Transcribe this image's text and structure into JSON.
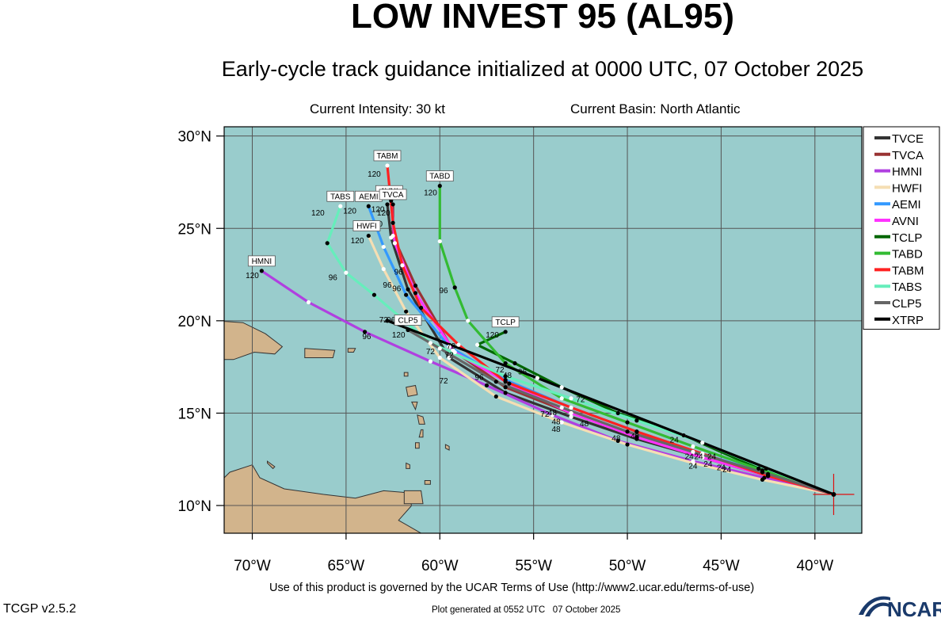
{
  "header": {
    "title": "LOW INVEST 95 (AL95)",
    "subtitle": "Early-cycle track guidance initialized at 0000 UTC, 07 October 2025",
    "intensity": "Current Intensity: 30 kt",
    "basin": "Current Basin: North Atlantic"
  },
  "footer": {
    "terms": "Use of this product is governed by the UCAR Terms of Use (http://www2.ucar.edu/terms-of-use)",
    "version": "TCGP v2.5.2",
    "generated": "Plot generated at 0552 UTC   07 October 2025",
    "logo_text": "NCAR"
  },
  "colors": {
    "ocean": "#99cccc",
    "land": "#d2b48c",
    "grid": "#555555"
  },
  "chart_data": {
    "type": "line",
    "xlim": [
      -71.5,
      -37.5
    ],
    "ylim": [
      8.5,
      30.5
    ],
    "x_ticks": [
      -70,
      -65,
      -60,
      -55,
      -50,
      -45,
      -40
    ],
    "x_tick_labels": [
      "70°W",
      "65°W",
      "60°W",
      "55°W",
      "50°W",
      "45°W",
      "40°W"
    ],
    "y_ticks": [
      10,
      15,
      20,
      25,
      30
    ],
    "y_tick_labels": [
      "10°N",
      "15°N",
      "20°N",
      "25°N",
      "30°N"
    ],
    "grid": true,
    "legend_position": "right",
    "initial_position": {
      "lon": -39.0,
      "lat": 10.6
    },
    "series": [
      {
        "name": "TVCE",
        "color": "#333333",
        "points": [
          [
            -39.0,
            10.6
          ],
          [
            -42.5,
            11.6
          ],
          [
            -46.0,
            12.6
          ],
          [
            -49.5,
            13.6
          ],
          [
            -53.0,
            14.8
          ],
          [
            -56.5,
            16.1
          ],
          [
            -59.5,
            18.0
          ],
          [
            -61.7,
            21.7
          ],
          [
            -62.6,
            24.5
          ],
          [
            -62.8,
            26.3
          ]
        ]
      },
      {
        "name": "TVCA",
        "color": "#993333",
        "points": [
          [
            -39.0,
            10.6
          ],
          [
            -42.5,
            11.6
          ],
          [
            -46.0,
            12.6
          ],
          [
            -49.5,
            13.7
          ],
          [
            -53.0,
            15.0
          ],
          [
            -56.5,
            16.4
          ],
          [
            -59.3,
            18.4
          ],
          [
            -61.3,
            21.9
          ],
          [
            -62.5,
            24.6
          ],
          [
            -62.5,
            26.3
          ]
        ]
      },
      {
        "name": "HMNI",
        "color": "#b040e0",
        "points": [
          [
            -39.0,
            10.6
          ],
          [
            -42.7,
            11.5
          ],
          [
            -46.5,
            12.4
          ],
          [
            -50.5,
            13.5
          ],
          [
            -54.0,
            14.9
          ],
          [
            -57.5,
            16.5
          ],
          [
            -60.5,
            17.8
          ],
          [
            -64.0,
            19.4
          ],
          [
            -67.0,
            21.0
          ],
          [
            -69.5,
            22.7
          ]
        ]
      },
      {
        "name": "HWFI",
        "color": "#f5deb3",
        "points": [
          [
            -39.0,
            10.6
          ],
          [
            -42.8,
            11.4
          ],
          [
            -46.5,
            12.3
          ],
          [
            -50.0,
            13.3
          ],
          [
            -53.5,
            14.5
          ],
          [
            -57.0,
            15.9
          ],
          [
            -60.0,
            18.0
          ],
          [
            -61.8,
            20.5
          ],
          [
            -63.0,
            22.8
          ],
          [
            -63.8,
            24.6
          ]
        ]
      },
      {
        "name": "AEMI",
        "color": "#3399ff",
        "points": [
          [
            -39.0,
            10.6
          ],
          [
            -42.5,
            11.7
          ],
          [
            -46.0,
            12.8
          ],
          [
            -49.5,
            14.0
          ],
          [
            -53.0,
            15.3
          ],
          [
            -56.5,
            16.8
          ],
          [
            -59.5,
            18.6
          ],
          [
            -61.8,
            21.4
          ],
          [
            -63.0,
            24.0
          ],
          [
            -63.8,
            26.2
          ]
        ]
      },
      {
        "name": "AVNI",
        "color": "#ff33ff",
        "points": [
          [
            -39.0,
            10.6
          ],
          [
            -42.5,
            11.6
          ],
          [
            -46.0,
            12.6
          ],
          [
            -49.5,
            13.7
          ],
          [
            -53.0,
            15.0
          ],
          [
            -56.3,
            16.6
          ],
          [
            -59.2,
            18.3
          ],
          [
            -61.3,
            21.5
          ],
          [
            -62.4,
            24.2
          ],
          [
            -62.6,
            26.5
          ]
        ]
      },
      {
        "name": "TCLP",
        "color": "#006600",
        "points": [
          [
            -39.0,
            10.6
          ],
          [
            -43.0,
            12.0
          ],
          [
            -47.0,
            13.8
          ],
          [
            -50.5,
            15.0
          ],
          [
            -53.5,
            16.4
          ],
          [
            -56.0,
            17.7
          ],
          [
            -58.0,
            18.7
          ],
          [
            -56.5,
            19.4
          ]
        ]
      },
      {
        "name": "TABD",
        "color": "#33bb33",
        "points": [
          [
            -39.0,
            10.6
          ],
          [
            -42.8,
            11.9
          ],
          [
            -46.5,
            13.2
          ],
          [
            -50.0,
            14.5
          ],
          [
            -53.5,
            15.8
          ],
          [
            -56.5,
            17.7
          ],
          [
            -58.5,
            20.0
          ],
          [
            -59.2,
            21.8
          ],
          [
            -60.0,
            24.3
          ],
          [
            -60.0,
            27.3
          ]
        ]
      },
      {
        "name": "TABM",
        "color": "#ff2222",
        "points": [
          [
            -39.0,
            10.6
          ],
          [
            -42.5,
            11.6
          ],
          [
            -46.0,
            12.8
          ],
          [
            -49.5,
            14.0
          ],
          [
            -53.0,
            15.3
          ],
          [
            -56.5,
            16.7
          ],
          [
            -59.0,
            18.7
          ],
          [
            -61.0,
            20.7
          ],
          [
            -62.0,
            23.0
          ],
          [
            -62.5,
            25.3
          ],
          [
            -62.8,
            28.4
          ]
        ]
      },
      {
        "name": "TABS",
        "color": "#66eebb",
        "points": [
          [
            -39.0,
            10.6
          ],
          [
            -42.6,
            12.0
          ],
          [
            -46.0,
            13.4
          ],
          [
            -49.5,
            14.6
          ],
          [
            -53.0,
            15.8
          ],
          [
            -56.5,
            17.0
          ],
          [
            -60.5,
            18.8
          ],
          [
            -63.5,
            21.4
          ],
          [
            -65.0,
            22.6
          ],
          [
            -66.0,
            24.2
          ],
          [
            -65.3,
            26.2
          ]
        ]
      },
      {
        "name": "CLP5",
        "color": "#666666",
        "points": [
          [
            -39.0,
            10.6
          ],
          [
            -42.8,
            11.8
          ],
          [
            -46.5,
            12.9
          ],
          [
            -50.0,
            14.0
          ],
          [
            -53.5,
            15.3
          ],
          [
            -57.0,
            16.7
          ],
          [
            -60.0,
            18.5
          ],
          [
            -61.7,
            19.5
          ]
        ]
      },
      {
        "name": "XTRP",
        "color": "#000000",
        "points": [
          [
            -39.0,
            10.6
          ],
          [
            -47.0,
            13.8
          ],
          [
            -54.8,
            16.9
          ],
          [
            -62.8,
            20.0
          ]
        ]
      }
    ],
    "end_labels": [
      {
        "text": "TABM",
        "lon": -62.8,
        "lat": 28.4
      },
      {
        "text": "TABD",
        "lon": -60.0,
        "lat": 27.3
      },
      {
        "text": "AVNI",
        "lon": -62.7,
        "lat": 26.5
      },
      {
        "text": "AEMI",
        "lon": -63.8,
        "lat": 26.2
      },
      {
        "text": "TVCA",
        "lon": -62.5,
        "lat": 26.3
      },
      {
        "text": "TABS",
        "lon": -65.3,
        "lat": 26.2
      },
      {
        "text": "HWFI",
        "lon": -63.9,
        "lat": 24.6
      },
      {
        "text": "HMNI",
        "lon": -69.5,
        "lat": 22.7
      },
      {
        "text": "TCLP",
        "lon": -56.5,
        "lat": 19.4
      },
      {
        "text": "CLP5",
        "lon": -61.7,
        "lat": 19.5
      }
    ],
    "hour_labels": [
      {
        "text": "120",
        "lon": -63.5,
        "lat": 27.8
      },
      {
        "text": "120",
        "lon": -60.5,
        "lat": 26.8
      },
      {
        "text": "120",
        "lon": -63.3,
        "lat": 25.9
      },
      {
        "text": "120",
        "lon": -64.8,
        "lat": 25.8
      },
      {
        "text": "120",
        "lon": -63.0,
        "lat": 25.7
      },
      {
        "text": "120",
        "lon": -63.4,
        "lat": 25.1
      },
      {
        "text": "120",
        "lon": -66.5,
        "lat": 25.7
      },
      {
        "text": "120",
        "lon": -64.4,
        "lat": 24.2
      },
      {
        "text": "120",
        "lon": -70.0,
        "lat": 22.3
      },
      {
        "text": "120",
        "lon": -57.2,
        "lat": 19.1
      },
      {
        "text": "120",
        "lon": -62.2,
        "lat": 19.1
      },
      {
        "text": "96",
        "lon": -62.2,
        "lat": 22.5
      },
      {
        "text": "96",
        "lon": -62.8,
        "lat": 21.8
      },
      {
        "text": "96",
        "lon": -62.3,
        "lat": 21.6
      },
      {
        "text": "96",
        "lon": -65.7,
        "lat": 22.2
      },
      {
        "text": "96",
        "lon": -63.9,
        "lat": 19.0
      },
      {
        "text": "96",
        "lon": -59.8,
        "lat": 21.5
      },
      {
        "text": "96",
        "lon": -57.9,
        "lat": 16.8
      },
      {
        "text": "96",
        "lon": -55.6,
        "lat": 17.1
      },
      {
        "text": "96",
        "lon": -62.6,
        "lat": 19.9
      },
      {
        "text": "72",
        "lon": -63.0,
        "lat": 19.9
      },
      {
        "text": "72",
        "lon": -60.5,
        "lat": 18.2
      },
      {
        "text": "72",
        "lon": -59.5,
        "lat": 18.0
      },
      {
        "text": "72",
        "lon": -56.8,
        "lat": 17.2
      },
      {
        "text": "72",
        "lon": -59.8,
        "lat": 16.6
      },
      {
        "text": "72",
        "lon": -59.4,
        "lat": 18.5
      },
      {
        "text": "72",
        "lon": -52.5,
        "lat": 15.6
      },
      {
        "text": "72",
        "lon": -54.4,
        "lat": 14.8
      },
      {
        "text": "48",
        "lon": -56.4,
        "lat": 16.9
      },
      {
        "text": "48",
        "lon": -54.0,
        "lat": 14.9
      },
      {
        "text": "48",
        "lon": -53.8,
        "lat": 14.4
      },
      {
        "text": "48",
        "lon": -53.8,
        "lat": 14.0
      },
      {
        "text": "48",
        "lon": -52.3,
        "lat": 14.3
      },
      {
        "text": "48",
        "lon": -49.6,
        "lat": 13.6
      },
      {
        "text": "48",
        "lon": -50.6,
        "lat": 13.5
      },
      {
        "text": "24",
        "lon": -47.5,
        "lat": 13.4
      },
      {
        "text": "24",
        "lon": -46.7,
        "lat": 12.5
      },
      {
        "text": "24",
        "lon": -46.2,
        "lat": 12.5
      },
      {
        "text": "24",
        "lon": -45.5,
        "lat": 12.5
      },
      {
        "text": "24",
        "lon": -46.5,
        "lat": 12.0
      },
      {
        "text": "24",
        "lon": -45.7,
        "lat": 12.1
      },
      {
        "text": "24",
        "lon": -45.0,
        "lat": 11.9
      },
      {
        "text": "24",
        "lon": -44.7,
        "lat": 11.8
      }
    ]
  }
}
